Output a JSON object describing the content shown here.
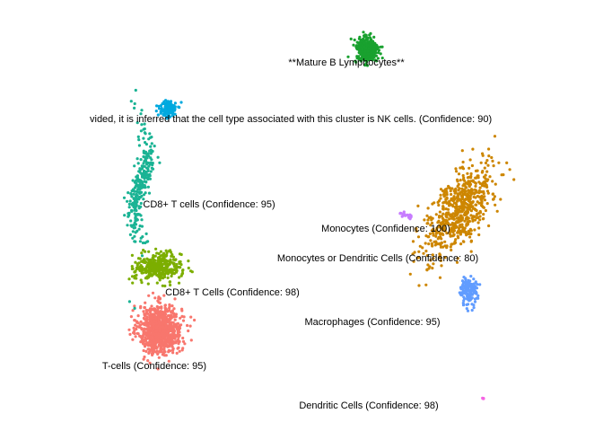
{
  "chart_data": {
    "type": "scatter",
    "title": "",
    "xlabel": "",
    "ylabel": "",
    "grid": false,
    "axes_visible": false,
    "legend": "none",
    "series": [
      {
        "label": "T-cells (Confidence: 95)",
        "color": "#F8766D",
        "center": [
          -6.5,
          -6.5
        ],
        "spread": [
          1.0,
          1.3
        ],
        "points": 900
      },
      {
        "label": "CD8+ T Cells (Confidence: 98)",
        "color": "#7CAE00",
        "center": [
          -6.6,
          -2.8
        ],
        "spread": [
          1.1,
          0.75
        ],
        "points": 350
      },
      {
        "label": "CD8+ T cells (Confidence: 95)",
        "color": "#1AB394",
        "center": [
          -7.5,
          2.2
        ],
        "spread": [
          0.4,
          2.0
        ],
        "points": 280
      },
      {
        "label": "vided, it is inferred that the cell type associated with this cluster is NK cells. (Confidence: 90)",
        "color": "#00A9DF",
        "center": [
          -6.1,
          6.6
        ],
        "spread": [
          0.4,
          0.5
        ],
        "points": 120
      },
      {
        "label": "**Mature B Lymphocytes**",
        "color": "#19A12F",
        "center": [
          4.2,
          10.1
        ],
        "spread": [
          0.55,
          0.75
        ],
        "points": 330
      },
      {
        "label": "Monocytes (Confidence: 100)",
        "color": "#CD8600",
        "center": [
          9.0,
          0.6
        ],
        "spread": [
          0.9,
          1.5
        ],
        "points": 650
      },
      {
        "label": "Monocytes or Dendritic Cells (Confidence: 80)",
        "color": "#C77CFF",
        "center": [
          6.2,
          0.3
        ],
        "spread": [
          0.3,
          0.08
        ],
        "points": 25
      },
      {
        "label": "Macrophages (Confidence: 95)",
        "color": "#619CFF",
        "center": [
          9.5,
          -4.2
        ],
        "spread": [
          0.4,
          0.7
        ],
        "points": 170
      },
      {
        "label": "Dendritic Cells (Confidence: 98)",
        "color": "#F564E3",
        "center": [
          10.2,
          -10.6
        ],
        "spread": [
          0.05,
          0.05
        ],
        "points": 6
      }
    ],
    "ylim": [
      -12,
      12
    ],
    "xlim": [
      -12,
      14
    ]
  }
}
